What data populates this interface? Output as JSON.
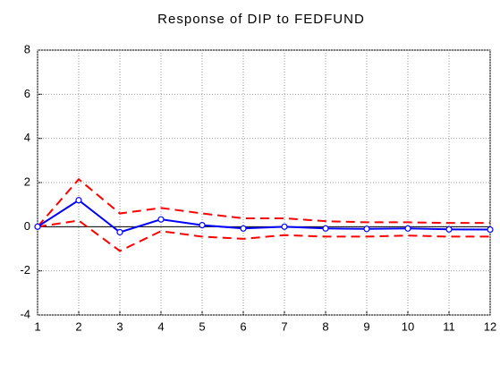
{
  "chart_data": {
    "type": "line",
    "title": "Response of DIP to FEDFUND",
    "x": [
      1,
      2,
      3,
      4,
      5,
      6,
      7,
      8,
      9,
      10,
      11,
      12
    ],
    "xlim": [
      1,
      12
    ],
    "xticks": [
      1,
      2,
      3,
      4,
      5,
      6,
      7,
      8,
      9,
      10,
      11,
      12
    ],
    "ylim": [
      -4,
      8
    ],
    "yticks": [
      -4,
      -2,
      0,
      2,
      4,
      6,
      8
    ],
    "grid": true,
    "zero_line": true,
    "series": [
      {
        "color": "#ff0000",
        "style": "dashed",
        "markers": false,
        "values": [
          0,
          2.15,
          0.6,
          0.85,
          0.6,
          0.38,
          0.38,
          0.25,
          0.2,
          0.2,
          0.17,
          0.17
        ]
      },
      {
        "color": "#ff0000",
        "style": "dashed",
        "markers": false,
        "values": [
          0,
          0.28,
          -1.1,
          -0.2,
          -0.45,
          -0.55,
          -0.38,
          -0.45,
          -0.45,
          -0.4,
          -0.45,
          -0.45
        ]
      },
      {
        "color": "#0000ff",
        "style": "solid",
        "markers": true,
        "values": [
          0,
          1.2,
          -0.25,
          0.33,
          0.07,
          -0.08,
          0.0,
          -0.08,
          -0.1,
          -0.08,
          -0.12,
          -0.13
        ]
      }
    ]
  }
}
